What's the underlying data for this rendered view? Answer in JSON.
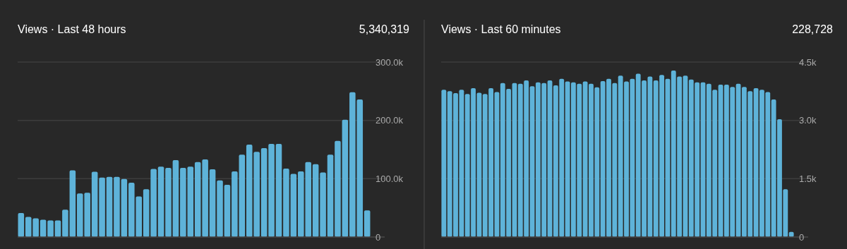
{
  "chart_data": [
    {
      "type": "bar",
      "title": "Views · Last 48 hours",
      "subtitle": "5,340,319",
      "color": "#5eb3d9",
      "grid": "y",
      "categories": [
        null,
        null,
        null,
        null,
        null,
        null,
        null,
        null,
        null,
        null,
        null,
        null,
        null,
        null,
        null,
        null,
        null,
        null,
        null,
        null,
        null,
        null,
        null,
        null,
        null,
        null,
        null,
        null,
        null,
        null,
        null,
        null,
        null,
        null,
        null,
        null,
        null,
        null,
        null,
        null,
        null,
        null,
        null,
        null,
        null,
        null,
        null,
        null
      ],
      "values": [
        41000,
        34400,
        32000,
        29600,
        28400,
        28400,
        46800,
        114400,
        74800,
        76000,
        112000,
        102000,
        103000,
        103000,
        99600,
        93200,
        69600,
        82000,
        116800,
        120800,
        118400,
        132000,
        118400,
        120800,
        128400,
        133200,
        116000,
        97200,
        89600,
        112400,
        141200,
        158400,
        146000,
        152400,
        159600,
        159600,
        117200,
        108400,
        112400,
        128400,
        124800,
        110800,
        141200,
        164800,
        201200,
        248400,
        236000,
        45600
      ],
      "ylim": [
        0,
        300000
      ],
      "yticks": [
        0,
        {
          "value": 100000,
          "label": "100.0k"
        },
        {
          "value": 200000,
          "label": "200.0k"
        },
        {
          "value": 300000,
          "label": "300.0k"
        }
      ]
    },
    {
      "type": "bar",
      "title": "Views · Last 60 minutes",
      "subtitle": "228,728",
      "color": "#5eb3d9",
      "grid": "y",
      "categories": [
        null,
        null,
        null,
        null,
        null,
        null,
        null,
        null,
        null,
        null,
        null,
        null,
        null,
        null,
        null,
        null,
        null,
        null,
        null,
        null,
        null,
        null,
        null,
        null,
        null,
        null,
        null,
        null,
        null,
        null,
        null,
        null,
        null,
        null,
        null,
        null,
        null,
        null,
        null,
        null,
        null,
        null,
        null,
        null,
        null,
        null,
        null,
        null,
        null,
        null,
        null,
        null,
        null,
        null,
        null,
        null,
        null,
        null,
        null,
        null
      ],
      "values": [
        3790,
        3750,
        3700,
        3790,
        3680,
        3830,
        3710,
        3680,
        3830,
        3730,
        3960,
        3810,
        3960,
        3940,
        4030,
        3880,
        3980,
        3960,
        4030,
        3900,
        4070,
        4000,
        3980,
        3940,
        4000,
        3940,
        3850,
        4010,
        4070,
        3960,
        4150,
        4000,
        4070,
        4200,
        4030,
        4130,
        4030,
        4170,
        4070,
        4280,
        4130,
        4150,
        4050,
        3980,
        3980,
        3940,
        3790,
        3920,
        3920,
        3860,
        3940,
        3860,
        3750,
        3830,
        3790,
        3730,
        3540,
        3030,
        1230,
        130
      ],
      "ylim": [
        0,
        4500
      ],
      "yticks": [
        0,
        {
          "value": 1500,
          "label": "1.5k"
        },
        {
          "value": 3000,
          "label": "3.0k"
        },
        {
          "value": 4500,
          "label": "4.5k"
        }
      ]
    }
  ]
}
